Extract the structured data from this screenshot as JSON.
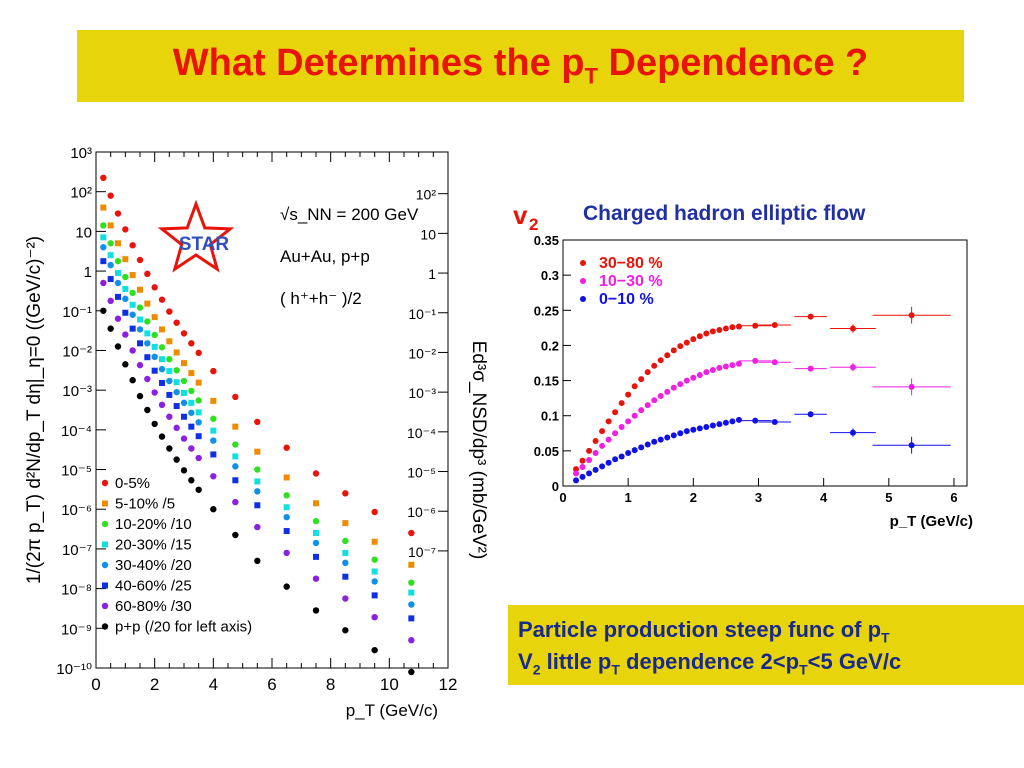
{
  "title": {
    "pre": "What Determines the p",
    "sub": "T",
    "post": " Dependence ?"
  },
  "colors": {
    "title_bg": "#e8d40a",
    "title_text": "#e8140a",
    "note_text": "#1a2a8c"
  },
  "chart_data": [
    {
      "type": "scatter",
      "logo": "STAR",
      "annotations": [
        "√s_NN = 200 GeV",
        "Au+Au, p+p",
        "( h⁺+h⁻ )/2"
      ],
      "xlabel": "p_T (GeV/c)",
      "ylabel_left": "1/(2π p_T)  d²N/dp_T dη|_η=0 ((GeV/c)⁻²)",
      "ylabel_right": "Ed³σ_NSD/dp³ (mb/GeV²)",
      "xlim": [
        0,
        12
      ],
      "ylim_log10": [
        -10,
        3
      ],
      "xticks": [
        "0",
        "2",
        "4",
        "6",
        "8",
        "10",
        "12"
      ],
      "yticks_left": [
        "10³",
        "10²",
        "10",
        "1",
        "10⁻¹",
        "10⁻²",
        "10⁻³",
        "10⁻⁴",
        "10⁻⁵",
        "10⁻⁶",
        "10⁻⁷",
        "10⁻⁸",
        "10⁻⁹",
        "10⁻¹⁰"
      ],
      "yticks_right": [
        "10²",
        "10",
        "1",
        "10⁻¹",
        "10⁻²",
        "10⁻³",
        "10⁻⁴",
        "10⁻⁵",
        "10⁻⁶",
        "10⁻⁷"
      ],
      "legend_placement": "bottom-left",
      "x": [
        0.25,
        0.5,
        0.75,
        1.0,
        1.25,
        1.5,
        1.75,
        2.0,
        2.25,
        2.5,
        2.75,
        3.0,
        3.25,
        3.5,
        4.0,
        4.75,
        5.5,
        6.5,
        7.5,
        8.5,
        9.5,
        10.75
      ],
      "series": [
        {
          "name": "0-5%",
          "color": "#e8140a",
          "marker": "circle",
          "log10_values": [
            2.35,
            1.9,
            1.45,
            1.05,
            0.65,
            0.28,
            -0.07,
            -0.41,
            -0.72,
            -1.02,
            -1.3,
            -1.57,
            -1.82,
            -2.06,
            -2.52,
            -3.17,
            -3.8,
            -4.45,
            -5.1,
            -5.6,
            -6.07,
            -6.6
          ]
        },
        {
          "name": "5-10% /5",
          "color": "#f08a00",
          "marker": "square",
          "log10_values": [
            1.6,
            1.15,
            0.7,
            0.3,
            -0.1,
            -0.47,
            -0.82,
            -1.16,
            -1.47,
            -1.77,
            -2.05,
            -2.32,
            -2.57,
            -2.81,
            -3.27,
            -3.92,
            -4.55,
            -5.2,
            -5.85,
            -6.35,
            -6.82,
            -7.4
          ]
        },
        {
          "name": "10-20% /10",
          "color": "#30e020",
          "marker": "circle",
          "log10_values": [
            1.15,
            0.7,
            0.25,
            -0.15,
            -0.55,
            -0.92,
            -1.27,
            -1.61,
            -1.92,
            -2.22,
            -2.5,
            -2.77,
            -3.02,
            -3.26,
            -3.72,
            -4.37,
            -5.0,
            -5.65,
            -6.3,
            -6.8,
            -7.27,
            -7.85
          ]
        },
        {
          "name": "20-30% /15",
          "color": "#10e0e0",
          "marker": "square",
          "log10_values": [
            0.85,
            0.4,
            -0.05,
            -0.45,
            -0.85,
            -1.22,
            -1.57,
            -1.91,
            -2.22,
            -2.52,
            -2.8,
            -3.07,
            -3.32,
            -3.56,
            -4.02,
            -4.67,
            -5.3,
            -5.95,
            -6.6,
            -7.1,
            -7.57,
            -8.1
          ]
        },
        {
          "name": "30-40% /20",
          "color": "#1090e8",
          "marker": "circle",
          "log10_values": [
            0.6,
            0.15,
            -0.3,
            -0.7,
            -1.1,
            -1.47,
            -1.82,
            -2.16,
            -2.47,
            -2.77,
            -3.05,
            -3.32,
            -3.57,
            -3.81,
            -4.27,
            -4.92,
            -5.55,
            -6.2,
            -6.85,
            -7.35,
            -7.82,
            -8.4
          ]
        },
        {
          "name": "40-60% /25",
          "color": "#1030e8",
          "marker": "square",
          "log10_values": [
            0.25,
            -0.2,
            -0.65,
            -1.05,
            -1.45,
            -1.82,
            -2.17,
            -2.51,
            -2.82,
            -3.12,
            -3.4,
            -3.67,
            -3.92,
            -4.16,
            -4.62,
            -5.27,
            -5.9,
            -6.55,
            -7.2,
            -7.7,
            -8.17,
            -8.75
          ]
        },
        {
          "name": "60-80% /30",
          "color": "#8a20e0",
          "marker": "circle",
          "log10_values": [
            -0.3,
            -0.75,
            -1.2,
            -1.6,
            -2.0,
            -2.37,
            -2.72,
            -3.06,
            -3.37,
            -3.67,
            -3.95,
            -4.22,
            -4.47,
            -4.71,
            -5.17,
            -5.82,
            -6.45,
            -7.1,
            -7.75,
            -8.25,
            -8.72,
            -9.3
          ]
        },
        {
          "name": "p+p (/20 for left axis)",
          "color": "#000000",
          "marker": "circle",
          "log10_values": [
            -1.0,
            -1.45,
            -1.9,
            -2.35,
            -2.75,
            -3.15,
            -3.5,
            -3.85,
            -4.17,
            -4.47,
            -4.75,
            -5.02,
            -5.27,
            -5.51,
            -6.0,
            -6.65,
            -7.3,
            -7.95,
            -8.55,
            -9.05,
            -9.55,
            -10.1
          ]
        }
      ]
    },
    {
      "type": "scatter",
      "y_symbol": "v",
      "y_symbol_sub": "2",
      "title": "Charged hadron elliptic flow",
      "xlabel": "p_T (GeV/c)",
      "xlim": [
        0,
        6.2
      ],
      "ylim": [
        0,
        0.35
      ],
      "xticks": [
        "0",
        "1",
        "2",
        "3",
        "4",
        "5",
        "6"
      ],
      "yticks": [
        "0",
        "0.05",
        "0.1",
        "0.15",
        "0.2",
        "0.25",
        "0.3",
        "0.35"
      ],
      "legend_placement": "top-left",
      "series": [
        {
          "name": "30−80 %",
          "color": "#e8140a",
          "x": [
            0.2,
            0.3,
            0.4,
            0.5,
            0.6,
            0.7,
            0.8,
            0.9,
            1.0,
            1.1,
            1.2,
            1.3,
            1.4,
            1.5,
            1.6,
            1.7,
            1.8,
            1.9,
            2.0,
            2.1,
            2.2,
            2.3,
            2.4,
            2.5,
            2.6,
            2.7,
            2.95,
            3.25,
            3.8,
            4.45,
            5.35
          ],
          "y": [
            0.024,
            0.036,
            0.05,
            0.064,
            0.078,
            0.092,
            0.105,
            0.118,
            0.13,
            0.142,
            0.152,
            0.162,
            0.171,
            0.179,
            0.186,
            0.193,
            0.199,
            0.204,
            0.209,
            0.213,
            0.217,
            0.22,
            0.222,
            0.224,
            0.226,
            0.227,
            0.228,
            0.229,
            0.241,
            0.224,
            0.243
          ]
        },
        {
          "name": "10−30 %",
          "color": "#f020e0",
          "x": [
            0.2,
            0.3,
            0.4,
            0.5,
            0.6,
            0.7,
            0.8,
            0.9,
            1.0,
            1.1,
            1.2,
            1.3,
            1.4,
            1.5,
            1.6,
            1.7,
            1.8,
            1.9,
            2.0,
            2.1,
            2.2,
            2.3,
            2.4,
            2.5,
            2.6,
            2.7,
            2.95,
            3.25,
            3.8,
            4.45,
            5.35
          ],
          "y": [
            0.018,
            0.027,
            0.037,
            0.047,
            0.057,
            0.066,
            0.075,
            0.084,
            0.092,
            0.1,
            0.108,
            0.115,
            0.122,
            0.128,
            0.134,
            0.14,
            0.145,
            0.15,
            0.154,
            0.158,
            0.162,
            0.165,
            0.168,
            0.17,
            0.172,
            0.174,
            0.178,
            0.176,
            0.167,
            0.169,
            0.141
          ]
        },
        {
          "name": "0−10 %",
          "color": "#1010e8",
          "x": [
            0.2,
            0.3,
            0.4,
            0.5,
            0.6,
            0.7,
            0.8,
            0.9,
            1.0,
            1.1,
            1.2,
            1.3,
            1.4,
            1.5,
            1.6,
            1.7,
            1.8,
            1.9,
            2.0,
            2.1,
            2.2,
            2.3,
            2.4,
            2.5,
            2.6,
            2.7,
            2.95,
            3.25,
            3.8,
            4.45,
            5.35
          ],
          "y": [
            0.008,
            0.013,
            0.018,
            0.023,
            0.028,
            0.033,
            0.038,
            0.042,
            0.047,
            0.051,
            0.055,
            0.059,
            0.063,
            0.066,
            0.069,
            0.072,
            0.075,
            0.078,
            0.08,
            0.082,
            0.084,
            0.086,
            0.088,
            0.09,
            0.092,
            0.094,
            0.093,
            0.091,
            0.102,
            0.076,
            0.058
          ]
        }
      ]
    }
  ],
  "note": {
    "line1": {
      "text": "Particle production steep func of p",
      "sub": "T"
    },
    "line2": {
      "pre": "V",
      "sub1": "2",
      "mid": " little p",
      "sub2": "T",
      "mid2": " dependence 2<p",
      "sub3": "T",
      "post": "<5 GeV/c"
    }
  }
}
